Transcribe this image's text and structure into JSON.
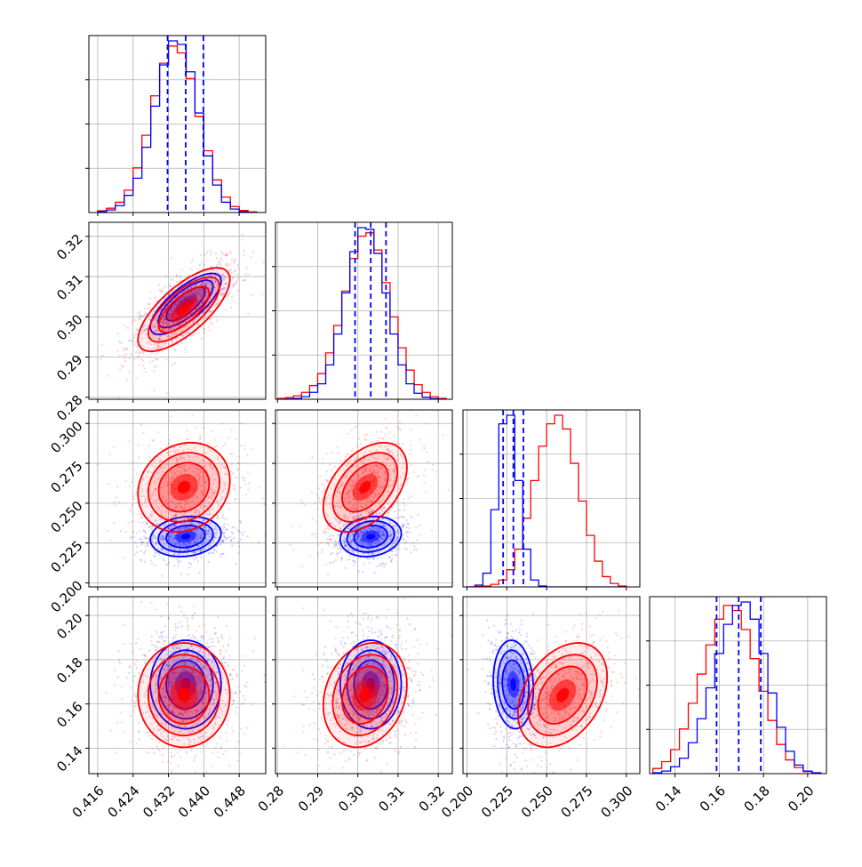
{
  "chart_data": {
    "type": "corner",
    "grid": true,
    "series": [
      {
        "color": "#0000ff"
      },
      {
        "color": "#ff0000"
      }
    ],
    "parameters": [
      {
        "range": [
          0.414,
          0.454
        ],
        "ticks": [
          "0.416",
          "0.424",
          "0.432",
          "0.440",
          "0.448"
        ],
        "tick_values": [
          0.416,
          0.424,
          0.432,
          0.44,
          0.448
        ]
      },
      {
        "range": [
          0.2795,
          0.3235
        ],
        "ticks": [
          "0.28",
          "0.29",
          "0.30",
          "0.31",
          "0.32"
        ],
        "tick_values": [
          0.28,
          0.29,
          0.3,
          0.31,
          0.32
        ]
      },
      {
        "range": [
          0.1975,
          0.3085
        ],
        "ticks": [
          "0.200",
          "0.225",
          "0.250",
          "0.275",
          "0.300"
        ],
        "tick_values": [
          0.2,
          0.225,
          0.25,
          0.275,
          0.3
        ]
      },
      {
        "range": [
          0.1285,
          0.2085
        ],
        "ticks": [
          "0.14",
          "0.16",
          "0.18",
          "0.20"
        ],
        "tick_values": [
          0.14,
          0.16,
          0.18,
          0.2
        ]
      }
    ],
    "histograms": [
      {
        "bin_edges": [
          0.416,
          0.418,
          0.42,
          0.422,
          0.424,
          0.426,
          0.428,
          0.43,
          0.432,
          0.434,
          0.436,
          0.438,
          0.44,
          0.442,
          0.444,
          0.446,
          0.448,
          0.45,
          0.452
        ],
        "blue": [
          0.005,
          0.015,
          0.04,
          0.1,
          0.2,
          0.38,
          0.62,
          0.86,
          1.0,
          0.98,
          0.82,
          0.58,
          0.33,
          0.16,
          0.06,
          0.02,
          0.005,
          0.0
        ],
        "red": [
          0.01,
          0.025,
          0.06,
          0.13,
          0.26,
          0.45,
          0.68,
          0.87,
          0.97,
          0.93,
          0.78,
          0.56,
          0.36,
          0.19,
          0.09,
          0.035,
          0.012,
          0.004
        ],
        "quantiles": [
          0.4318,
          0.4359,
          0.4399
        ]
      },
      {
        "bin_edges": [
          0.28,
          0.282,
          0.284,
          0.286,
          0.288,
          0.29,
          0.292,
          0.294,
          0.296,
          0.298,
          0.3,
          0.302,
          0.304,
          0.306,
          0.308,
          0.31,
          0.312,
          0.314,
          0.316,
          0.318,
          0.32,
          0.322
        ],
        "blue": [
          0.0,
          0.002,
          0.005,
          0.015,
          0.04,
          0.09,
          0.2,
          0.38,
          0.62,
          0.86,
          1.0,
          0.99,
          0.85,
          0.62,
          0.38,
          0.2,
          0.09,
          0.035,
          0.012,
          0.004,
          0.0
        ],
        "red": [
          0.005,
          0.01,
          0.02,
          0.04,
          0.08,
          0.15,
          0.27,
          0.43,
          0.63,
          0.82,
          0.95,
          0.97,
          0.87,
          0.68,
          0.48,
          0.3,
          0.17,
          0.085,
          0.04,
          0.015,
          0.005
        ],
        "quantiles": [
          0.2993,
          0.3032,
          0.307
        ]
      },
      {
        "bin_edges": [
          0.2,
          0.205,
          0.21,
          0.215,
          0.22,
          0.225,
          0.23,
          0.235,
          0.24,
          0.245,
          0.25,
          0.255,
          0.26,
          0.265,
          0.27,
          0.275,
          0.28,
          0.285,
          0.29,
          0.295,
          0.3
        ],
        "blue": [
          0.0,
          0.01,
          0.08,
          0.45,
          0.95,
          1.0,
          0.62,
          0.22,
          0.04,
          0.005,
          0.0,
          0.0,
          0.0,
          0.0,
          0.0,
          0.0,
          0.0,
          0.0,
          0.0,
          0.0
        ],
        "red": [
          0.0,
          0.002,
          0.005,
          0.015,
          0.04,
          0.1,
          0.22,
          0.4,
          0.62,
          0.82,
          0.95,
          1.0,
          0.92,
          0.72,
          0.5,
          0.3,
          0.15,
          0.06,
          0.02,
          0.005
        ],
        "quantiles": [
          0.2227,
          0.2291,
          0.2354
        ]
      },
      {
        "bin_edges": [
          0.13,
          0.134,
          0.138,
          0.142,
          0.146,
          0.15,
          0.154,
          0.158,
          0.162,
          0.166,
          0.17,
          0.174,
          0.178,
          0.182,
          0.186,
          0.19,
          0.194,
          0.198,
          0.202,
          0.206
        ],
        "blue": [
          0.005,
          0.015,
          0.04,
          0.09,
          0.18,
          0.32,
          0.5,
          0.7,
          0.87,
          0.98,
          1.0,
          0.9,
          0.7,
          0.47,
          0.27,
          0.13,
          0.05,
          0.015,
          0.005
        ],
        "red": [
          0.03,
          0.07,
          0.14,
          0.26,
          0.41,
          0.58,
          0.75,
          0.9,
          0.98,
          0.95,
          0.84,
          0.67,
          0.48,
          0.31,
          0.17,
          0.08,
          0.035,
          0.012,
          0.004
        ],
        "quantiles": [
          0.1588,
          0.1688,
          0.1788
        ]
      }
    ],
    "pairs": [
      {
        "row": 1,
        "col": 0,
        "blue": {
          "mean": [
            0.4359,
            0.3032
          ],
          "sd": [
            0.004,
            0.0038
          ],
          "corr": 0.75,
          "n": 650
        },
        "red": {
          "mean": [
            0.4355,
            0.3018
          ],
          "sd": [
            0.0052,
            0.0052
          ],
          "corr": 0.72,
          "n": 650
        }
      },
      {
        "row": 2,
        "col": 0,
        "blue": {
          "mean": [
            0.4359,
            0.2291
          ],
          "sd": [
            0.004,
            0.0063
          ],
          "corr": 0.15,
          "n": 650
        },
        "red": {
          "mean": [
            0.4355,
            0.26
          ],
          "sd": [
            0.0052,
            0.014
          ],
          "corr": 0.15,
          "n": 650
        }
      },
      {
        "row": 2,
        "col": 1,
        "blue": {
          "mean": [
            0.3032,
            0.2291
          ],
          "sd": [
            0.0038,
            0.0063
          ],
          "corr": 0.15,
          "n": 650
        },
        "red": {
          "mean": [
            0.3018,
            0.26
          ],
          "sd": [
            0.0052,
            0.014
          ],
          "corr": 0.45,
          "n": 650
        }
      },
      {
        "row": 3,
        "col": 0,
        "blue": {
          "mean": [
            0.4359,
            0.1688
          ],
          "sd": [
            0.004,
            0.01
          ],
          "corr": 0.0,
          "n": 650
        },
        "red": {
          "mean": [
            0.4355,
            0.164
          ],
          "sd": [
            0.0052,
            0.0118
          ],
          "corr": 0.0,
          "n": 650
        }
      },
      {
        "row": 3,
        "col": 1,
        "blue": {
          "mean": [
            0.3032,
            0.1688
          ],
          "sd": [
            0.0038,
            0.01
          ],
          "corr": 0.0,
          "n": 650
        },
        "red": {
          "mean": [
            0.3018,
            0.164
          ],
          "sd": [
            0.0052,
            0.0118
          ],
          "corr": 0.2,
          "n": 650
        }
      },
      {
        "row": 3,
        "col": 2,
        "blue": {
          "mean": [
            0.2291,
            0.1688
          ],
          "sd": [
            0.0063,
            0.01
          ],
          "corr": -0.1,
          "n": 650
        },
        "red": {
          "mean": [
            0.26,
            0.164
          ],
          "sd": [
            0.014,
            0.0118
          ],
          "corr": 0.35,
          "n": 650
        }
      }
    ]
  }
}
